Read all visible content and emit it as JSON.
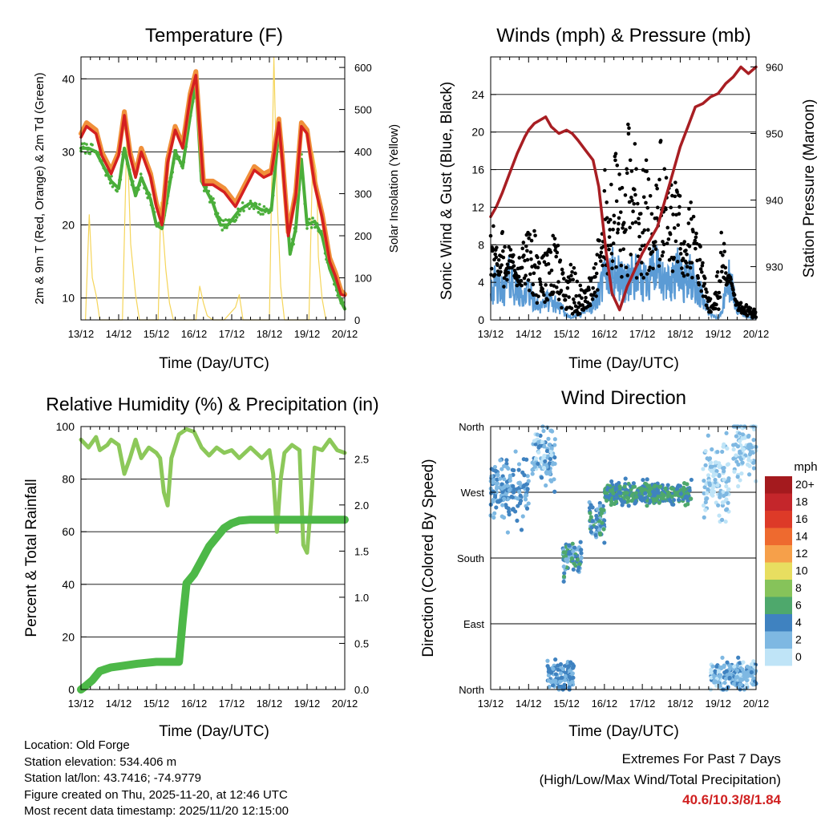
{
  "figure": {
    "time_axis_label": "Time (Day/UTC)"
  },
  "chart_data": [
    {
      "id": "temperature",
      "type": "line",
      "title": "Temperature (F)",
      "xlabel": "Time (Day/UTC)",
      "ylabel": "2m & 9m T (Red, Orange) & 2m Td (Green)",
      "y2label": "Solar Insolation (Yellow)",
      "x_ticks": [
        "13/12",
        "14/12",
        "15/12",
        "16/12",
        "17/12",
        "18/12",
        "19/12",
        "20/12"
      ],
      "xlim": [
        0,
        7
      ],
      "ylim": [
        7,
        43
      ],
      "yticks": [
        10,
        20,
        30,
        40
      ],
      "y2lim": [
        0,
        625
      ],
      "y2ticks": [
        0,
        100,
        200,
        300,
        400,
        500,
        600
      ],
      "grid": true,
      "series": [
        {
          "name": "9m T",
          "color": "#f0903a",
          "x": [
            0,
            0.15,
            0.4,
            0.55,
            0.8,
            1.0,
            1.15,
            1.3,
            1.45,
            1.6,
            1.85,
            2.0,
            2.15,
            2.3,
            2.5,
            2.7,
            2.9,
            3.05,
            3.25,
            3.5,
            3.8,
            4.1,
            4.35,
            4.6,
            4.85,
            5.05,
            5.25,
            5.35,
            5.5,
            5.7,
            5.85,
            6.0,
            6.2,
            6.4,
            6.6,
            6.75,
            6.9,
            7.0
          ],
          "y": [
            32.5,
            34,
            33,
            30,
            27.5,
            30,
            35.5,
            30,
            27,
            30.5,
            27,
            23,
            20.5,
            29,
            33.5,
            31,
            38,
            41,
            26,
            26,
            25,
            23,
            25.5,
            28,
            27,
            27.5,
            34.5,
            29,
            19,
            24.5,
            34,
            33,
            26,
            21.5,
            15.5,
            13.5,
            11,
            10.5
          ]
        },
        {
          "name": "2m T",
          "color": "#d42020",
          "x": [
            0,
            0.15,
            0.4,
            0.55,
            0.8,
            1.0,
            1.15,
            1.3,
            1.45,
            1.6,
            1.85,
            2.0,
            2.15,
            2.3,
            2.5,
            2.7,
            2.9,
            3.05,
            3.25,
            3.5,
            3.8,
            4.1,
            4.35,
            4.6,
            4.85,
            5.05,
            5.25,
            5.35,
            5.5,
            5.7,
            5.85,
            6.0,
            6.2,
            6.4,
            6.6,
            6.75,
            6.9,
            7.0
          ],
          "y": [
            32,
            33.5,
            32.5,
            29.5,
            27,
            29.5,
            35,
            29.5,
            26.5,
            30,
            26.5,
            22.5,
            20,
            28.5,
            33,
            30.5,
            37.5,
            40.5,
            25.5,
            25.5,
            24.5,
            22.5,
            25,
            27.5,
            26.5,
            27,
            34,
            28.5,
            18.5,
            24,
            33.5,
            32.5,
            25.5,
            21,
            15,
            13,
            10.5,
            10.3
          ]
        },
        {
          "name": "2m Td",
          "color": "#4aae3a",
          "x": [
            0,
            0.2,
            0.4,
            0.6,
            0.8,
            1.0,
            1.15,
            1.3,
            1.45,
            1.6,
            1.85,
            2.0,
            2.15,
            2.3,
            2.5,
            2.7,
            2.9,
            3.05,
            3.2,
            3.5,
            3.7,
            3.9,
            4.2,
            4.5,
            4.8,
            5.05,
            5.25,
            5.4,
            5.55,
            5.7,
            5.85,
            6.0,
            6.2,
            6.4,
            6.6,
            6.75,
            6.9,
            7.0
          ],
          "y": [
            30.5,
            30.5,
            30,
            28,
            26,
            25,
            30.5,
            27,
            24,
            26.5,
            23.5,
            20,
            19.5,
            24,
            30,
            28,
            35,
            39.5,
            26,
            23,
            20,
            20,
            22,
            23,
            22,
            22,
            33,
            26,
            16,
            19.5,
            29,
            20,
            20.5,
            18.5,
            14,
            12,
            9.5,
            8.5
          ]
        },
        {
          "name": "Solar Insolation",
          "axis": "right",
          "color": "#f5d55a",
          "x": [
            0.12,
            0.22,
            0.3,
            0.4,
            0.5,
            1.1,
            1.22,
            1.32,
            1.45,
            1.55,
            2.05,
            2.12,
            2.25,
            2.35,
            2.45,
            3.05,
            3.15,
            3.25,
            3.35,
            3.5,
            3.8,
            4.1,
            4.2,
            4.3,
            5.0,
            5.12,
            5.2,
            5.3,
            5.4,
            6.05,
            6.15,
            6.25,
            6.3,
            6.4,
            6.5
          ],
          "y": [
            0,
            250,
            100,
            60,
            0,
            0,
            450,
            180,
            60,
            0,
            0,
            280,
            120,
            40,
            0,
            0,
            80,
            40,
            10,
            0,
            0,
            30,
            60,
            0,
            0,
            625,
            300,
            80,
            0,
            0,
            400,
            350,
            150,
            50,
            0
          ]
        }
      ]
    },
    {
      "id": "winds",
      "type": "scatter",
      "title": "Winds (mph) & Pressure (mb)",
      "xlabel": "Time (Day/UTC)",
      "ylabel": "Sonic Wind & Gust (Blue, Black)",
      "y2label": "Station Pressure (Maroon)",
      "x_ticks": [
        "13/12",
        "14/12",
        "15/12",
        "16/12",
        "17/12",
        "18/12",
        "19/12",
        "20/12"
      ],
      "xlim": [
        0,
        7
      ],
      "ylim": [
        0,
        28
      ],
      "yticks": [
        0,
        4,
        8,
        12,
        16,
        20,
        24
      ],
      "y2lim": [
        922,
        961.5
      ],
      "y2ticks": [
        930,
        940,
        950,
        960
      ],
      "grid": true,
      "series": [
        {
          "name": "Sonic Wind",
          "color": "#5b9bd5",
          "x": [
            0,
            0.3,
            0.5,
            0.8,
            1.0,
            1.2,
            1.5,
            1.8,
            2.0,
            2.2,
            2.5,
            2.8,
            3.0,
            3.2,
            3.5,
            3.8,
            4.0,
            4.3,
            4.6,
            4.9,
            5.1,
            5.3,
            5.5,
            5.8,
            6.0,
            6.1,
            6.3,
            6.5,
            6.8,
            7.0
          ],
          "y": [
            4.0,
            3.0,
            4.5,
            2.5,
            3.0,
            1.5,
            2.0,
            1.5,
            0.5,
            0.3,
            1.0,
            2.0,
            4.5,
            5.0,
            4.0,
            4.5,
            4.0,
            5.5,
            3.5,
            5.0,
            4.0,
            4.5,
            3.0,
            0.5,
            0.2,
            1.0,
            4.5,
            1.0,
            0.3,
            0.2
          ]
        },
        {
          "name": "Gust",
          "color": "#000000",
          "x": [
            0,
            0.1,
            0.2,
            0.3,
            0.5,
            0.7,
            0.9,
            1.1,
            1.3,
            1.5,
            1.7,
            1.9,
            2.1,
            2.3,
            2.5,
            2.7,
            2.9,
            3.0,
            3.1,
            3.3,
            3.5,
            3.7,
            3.9,
            4.1,
            4.3,
            4.5,
            4.7,
            4.9,
            5.1,
            5.3,
            5.5,
            5.7,
            5.9,
            6.1,
            6.2,
            6.4,
            6.6,
            6.8,
            7.0
          ],
          "y": [
            9,
            12,
            7,
            10,
            8,
            6,
            9,
            11,
            6,
            9,
            10,
            5,
            7,
            4,
            3,
            6,
            10,
            17,
            12,
            19,
            14,
            26,
            15,
            18,
            12,
            20,
            14,
            16,
            10,
            13,
            9,
            3,
            2,
            12,
            6,
            2,
            2,
            1.5,
            1
          ]
        },
        {
          "name": "Station Pressure",
          "axis": "right",
          "color": "#a81e23",
          "x": [
            0,
            0.15,
            0.3,
            0.5,
            0.7,
            0.9,
            1.0,
            1.15,
            1.3,
            1.45,
            1.6,
            1.8,
            2.0,
            2.15,
            2.3,
            2.5,
            2.7,
            2.85,
            2.95,
            3.05,
            3.2,
            3.4,
            3.6,
            3.8,
            4.0,
            4.2,
            4.4,
            4.6,
            4.8,
            5.0,
            5.2,
            5.4,
            5.6,
            5.8,
            6.0,
            6.2,
            6.4,
            6.6,
            6.8,
            7.0
          ],
          "y": [
            937.5,
            939,
            941,
            944,
            947,
            949.5,
            950.5,
            951.5,
            952,
            952.5,
            951,
            950,
            950.5,
            950,
            949,
            947.5,
            946,
            942,
            937,
            932,
            926,
            923.5,
            927,
            929.5,
            932,
            934,
            936,
            940,
            944,
            948,
            951,
            954,
            954.5,
            955.5,
            956,
            957.5,
            958.5,
            960,
            959,
            960
          ]
        }
      ]
    },
    {
      "id": "humidity",
      "type": "line",
      "title": "Relative Humidity (%) & Precipitation (in)",
      "xlabel": "Time (Day/UTC)",
      "ylabel": "Percent & Total Rainfall",
      "x_ticks": [
        "13/12",
        "14/12",
        "15/12",
        "16/12",
        "17/12",
        "18/12",
        "19/12",
        "20/12"
      ],
      "xlim": [
        0,
        7
      ],
      "ylim": [
        0,
        100
      ],
      "yticks": [
        0,
        20,
        40,
        60,
        80,
        100
      ],
      "y2lim": [
        0,
        2.85
      ],
      "y2ticks": [
        0.0,
        0.5,
        1.0,
        1.5,
        2.0,
        2.5
      ],
      "grid": true,
      "series": [
        {
          "name": "Relative Humidity",
          "color": "#8cc85a",
          "x": [
            0,
            0.2,
            0.4,
            0.5,
            0.7,
            0.8,
            1.0,
            1.15,
            1.3,
            1.45,
            1.6,
            1.8,
            2.0,
            2.1,
            2.2,
            2.3,
            2.4,
            2.6,
            2.8,
            3.0,
            3.2,
            3.4,
            3.6,
            3.8,
            4.0,
            4.2,
            4.5,
            4.8,
            5.0,
            5.1,
            5.2,
            5.3,
            5.4,
            5.6,
            5.8,
            5.9,
            6.0,
            6.1,
            6.2,
            6.4,
            6.6,
            6.8,
            7.0
          ],
          "y": [
            95,
            92,
            96,
            91,
            93,
            95,
            93,
            82,
            88,
            95,
            88,
            92,
            90,
            88,
            75,
            70,
            88,
            97,
            99,
            98,
            92,
            89,
            92,
            90,
            91,
            88,
            92,
            88,
            91,
            82,
            60,
            80,
            90,
            93,
            91,
            55,
            52,
            70,
            92,
            91,
            95,
            91,
            90
          ]
        },
        {
          "name": "Total Precipitation",
          "axis": "right",
          "color": "#4db848",
          "x": [
            0,
            0.1,
            0.3,
            0.5,
            0.8,
            1.0,
            1.5,
            2.0,
            2.4,
            2.6,
            2.7,
            2.8,
            2.9,
            3.0,
            3.2,
            3.4,
            3.6,
            3.8,
            4.0,
            4.2,
            4.5,
            5.0,
            6.0,
            7.0
          ],
          "y": [
            0.0,
            0.03,
            0.1,
            0.2,
            0.24,
            0.25,
            0.28,
            0.3,
            0.3,
            0.3,
            0.75,
            1.15,
            1.2,
            1.25,
            1.4,
            1.55,
            1.65,
            1.75,
            1.8,
            1.83,
            1.84,
            1.84,
            1.84,
            1.84
          ]
        }
      ]
    },
    {
      "id": "direction",
      "type": "scatter",
      "title": "Wind Direction",
      "xlabel": "Time (Day/UTC)",
      "ylabel": "Direction (Colored By Speed)",
      "x_ticks": [
        "13/12",
        "14/12",
        "15/12",
        "16/12",
        "17/12",
        "18/12",
        "19/12",
        "20/12"
      ],
      "xlim": [
        0,
        7
      ],
      "ylim": [
        0,
        360
      ],
      "y_tick_values": [
        0,
        90,
        180,
        270,
        360
      ],
      "y_tick_labels": [
        "North",
        "East",
        "South",
        "West",
        "North"
      ],
      "grid": true,
      "colorbar": {
        "label": "mph",
        "labels": [
          "20+",
          "18",
          "16",
          "14",
          "12",
          "10",
          "8",
          "6",
          "4",
          "2",
          "0"
        ],
        "colors": [
          "#a41a1e",
          "#c4262b",
          "#dd3a28",
          "#ee6a2f",
          "#f6a04a",
          "#e8de60",
          "#86c35a",
          "#4ea86c",
          "#3f82c0",
          "#7eb8e2",
          "#bfe4f7"
        ]
      },
      "clusters": [
        {
          "x_range": [
            0.0,
            1.0
          ],
          "dir_center": 275,
          "dir_spread": 45,
          "speed": 3
        },
        {
          "x_range": [
            1.1,
            1.7
          ],
          "dir_center": 320,
          "dir_spread": 40,
          "speed": 2
        },
        {
          "x_range": [
            1.9,
            2.4
          ],
          "dir_center": 180,
          "dir_spread": 25,
          "speed": 4
        },
        {
          "x_range": [
            2.6,
            3.0
          ],
          "dir_center": 230,
          "dir_spread": 30,
          "speed": 4
        },
        {
          "x_range": [
            3.0,
            5.3
          ],
          "dir_center": 268,
          "dir_spread": 15,
          "speed": 5
        },
        {
          "x_range": [
            5.6,
            6.3
          ],
          "dir_center": 290,
          "dir_spread": 50,
          "speed": 1
        },
        {
          "x_range": [
            6.4,
            7.0
          ],
          "dir_center": 330,
          "dir_spread": 40,
          "speed": 1
        },
        {
          "x_range": [
            1.5,
            2.2
          ],
          "dir_center": 20,
          "dir_spread": 20,
          "speed": 3
        },
        {
          "x_range": [
            5.8,
            7.0
          ],
          "dir_center": 20,
          "dir_spread": 20,
          "speed": 2
        }
      ]
    }
  ],
  "footer": {
    "location": "Location: Old Forge",
    "elevation": "Station elevation: 534.406 m",
    "latlon": "Station lat/lon: 43.7416; -74.9779",
    "created": "Figure created on Thu, 2025-11-20, at 12:46 UTC",
    "recent": "Most recent data timestamp: 2025/11/20 12:15:00"
  },
  "extremes": {
    "title": "Extremes For Past 7 Days",
    "subtitle": "(High/Low/Max Wind/Total Precipitation)",
    "values": "40.6/10.3/8/1.84"
  }
}
